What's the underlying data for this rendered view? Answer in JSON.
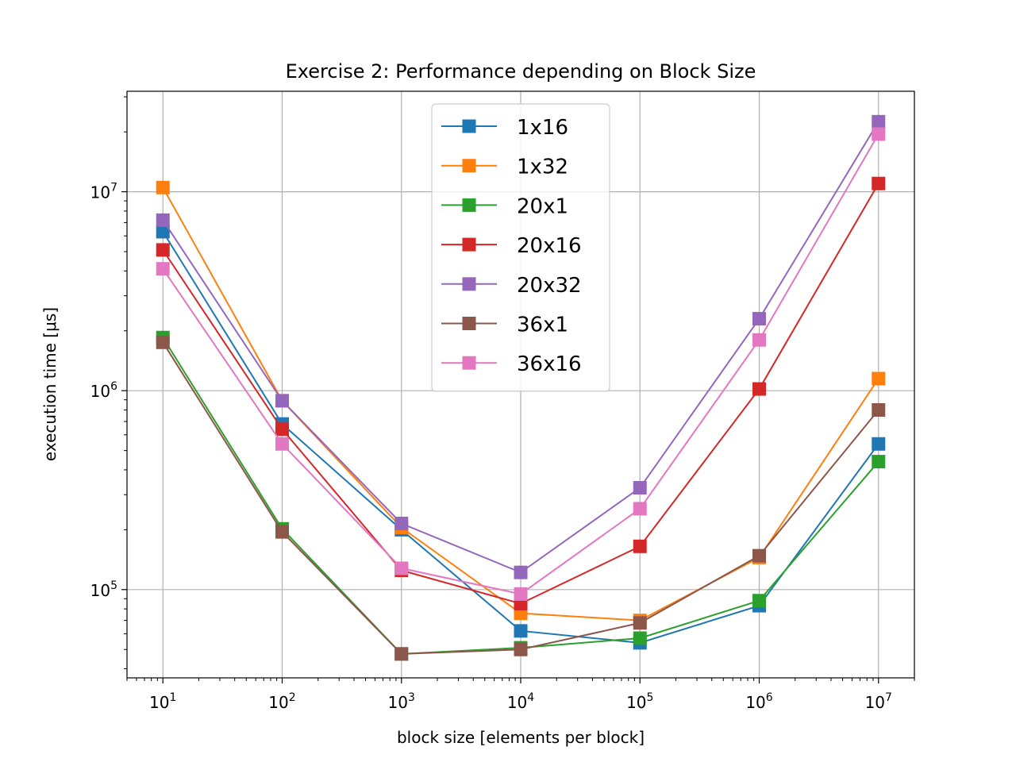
{
  "chart_data": {
    "type": "line",
    "title": "Exercise 2: Performance depending on Block Size",
    "xlabel": "block size [elements per block]",
    "ylabel": "execution time [μs]",
    "xscale": "log",
    "yscale": "log",
    "xlim": [
      5,
      20000000
    ],
    "ylim": [
      36000,
      32000000
    ],
    "grid": true,
    "legend_position": "upper-center",
    "x": [
      10,
      100,
      1000,
      10000,
      100000,
      1000000,
      10000000
    ],
    "x_ticks": [
      10,
      100,
      1000,
      10000,
      100000,
      1000000,
      10000000
    ],
    "x_tick_exponents": [
      "1",
      "2",
      "3",
      "4",
      "5",
      "6",
      "7"
    ],
    "y_ticks": [
      100000,
      1000000,
      10000000
    ],
    "y_tick_exponents": [
      "5",
      "6",
      "7"
    ],
    "tick_base": "10",
    "series": [
      {
        "name": "1x16",
        "color": "#1f77b4",
        "values": [
          6300000,
          680000,
          200000,
          62000,
          54000,
          83000,
          540000
        ]
      },
      {
        "name": "1x32",
        "color": "#ff7f0e",
        "values": [
          10500000,
          890000,
          205000,
          76000,
          70000,
          145000,
          1150000
        ]
      },
      {
        "name": "20x1",
        "color": "#2ca02c",
        "values": [
          1850000,
          202000,
          47500,
          51000,
          57000,
          88000,
          440000
        ]
      },
      {
        "name": "20x16",
        "color": "#d62728",
        "values": [
          5100000,
          640000,
          125000,
          85000,
          165000,
          1020000,
          11000000
        ]
      },
      {
        "name": "20x32",
        "color": "#9467bd",
        "values": [
          7200000,
          890000,
          215000,
          122000,
          325000,
          2300000,
          22500000
        ]
      },
      {
        "name": "36x1",
        "color": "#8c564b",
        "values": [
          1750000,
          195000,
          47500,
          50000,
          68000,
          148000,
          800000
        ]
      },
      {
        "name": "36x16",
        "color": "#e377c2",
        "values": [
          4100000,
          540000,
          128000,
          95000,
          255000,
          1800000,
          19500000
        ]
      }
    ]
  }
}
